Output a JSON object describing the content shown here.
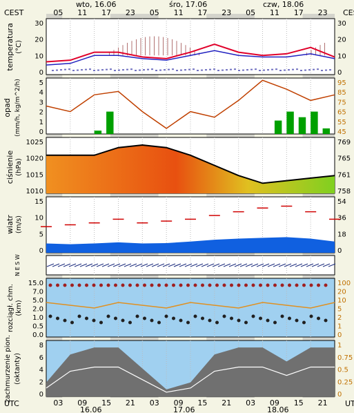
{
  "timezone_labels": {
    "top_left": "CEST",
    "top_right": "CEST",
    "bottom_left": "UTC",
    "bottom_right": "UTC"
  },
  "day_headers": [
    "wto, 16.06",
    "śro, 17.06",
    "czw, 18.06"
  ],
  "hours_top": [
    "05",
    "11",
    "17",
    "23",
    "05",
    "11",
    "17",
    "23",
    "05",
    "11",
    "17",
    "23"
  ],
  "hours_bottom": [
    "03",
    "09",
    "15",
    "21",
    "03",
    "09",
    "15",
    "21",
    "03",
    "09",
    "15",
    "21"
  ],
  "dates_bottom": [
    "16.06",
    "17.06",
    "18.06"
  ],
  "panels": {
    "temperature": {
      "ylabel_line1": "temperatura",
      "ylabel_line2": "(°C)",
      "left_ticks": [
        "0",
        "10",
        "20",
        "30"
      ],
      "right_ticks": [
        "0",
        "10",
        "20",
        "30"
      ]
    },
    "precipitation": {
      "ylabel_line1": "opad",
      "ylabel_line2": "(mm/h, kg/m^2/h)",
      "left_ticks": [
        "0",
        "1",
        "2",
        "3",
        "4",
        "5"
      ],
      "right_ticks": [
        "45",
        "55",
        "65",
        "75",
        "85",
        "95"
      ]
    },
    "pressure": {
      "ylabel_line1": "ciśnienie",
      "ylabel_line2": "(hPa)",
      "left_ticks": [
        "1010",
        "1015",
        "1020",
        "1025"
      ],
      "right_ticks": [
        "758",
        "761",
        "765",
        "769"
      ]
    },
    "wind": {
      "ylabel_line1": "wiatr",
      "ylabel_line2": "(m/s)",
      "left_ticks": [
        "0",
        "5",
        "10",
        "15"
      ],
      "right_ticks": [
        "0",
        "18",
        "36",
        "54"
      ]
    },
    "wind_dir": {
      "compass": "N E S W"
    },
    "cloud_base": {
      "ylabel_line1": "rozciągł. chm.",
      "ylabel_line2": "(km)",
      "left_ticks": [
        "0.0",
        "0.5",
        "1.0",
        "2.0",
        "5.0",
        "7.0",
        "15.0"
      ],
      "right_ticks": [
        "0",
        "1",
        "2",
        "5",
        "10",
        "20",
        "100"
      ]
    },
    "cloud_cover": {
      "ylabel_line1": "zachmurzenie pion.",
      "ylabel_line2": "(oktanty)",
      "left_ticks": [
        "0",
        "2",
        "4",
        "6",
        "8"
      ],
      "right_ticks": [
        "0",
        "0.25",
        "0.5",
        "0.75",
        "1"
      ]
    }
  },
  "colors": {
    "temperature": "#e0002a",
    "dewpoint": "#2020c0",
    "humidity_line": "#c04000",
    "rain": "#00a000",
    "wind_bar": "#1060e0",
    "gust": "#d00000",
    "cloud_bg": "#a0d0f0",
    "pressure_fill": "#f08020",
    "sea_level": "#6090ff"
  },
  "chart_data": [
    {
      "type": "line",
      "title": "temperatura",
      "ylim": [
        0,
        35
      ],
      "x_hours_from_start": [
        0,
        6,
        12,
        18,
        24,
        30,
        36,
        42,
        48,
        54,
        60,
        66,
        72
      ],
      "series": [
        {
          "name": "temperature",
          "values": [
            8,
            9,
            14,
            14,
            11,
            10,
            14,
            19,
            14,
            12,
            13,
            17,
            11
          ]
        },
        {
          "name": "dewpoint",
          "values": [
            6,
            7,
            12,
            12,
            10,
            9,
            12,
            15,
            12,
            11,
            11,
            13,
            10
          ]
        }
      ]
    },
    {
      "type": "bar",
      "title": "opad",
      "ylim": [
        0,
        5
      ],
      "series": [
        {
          "name": "precipitation",
          "values": [
            0,
            0,
            0,
            0,
            0.3,
            2,
            0,
            0,
            0,
            0,
            0,
            0,
            0,
            0,
            0,
            0,
            0,
            0,
            0,
            1.2,
            2,
            1.5,
            2,
            0.5
          ]
        },
        {
          "name": "humidity",
          "values": [
            70,
            65,
            80,
            83,
            65,
            50,
            65,
            60,
            75,
            93,
            85,
            75,
            80
          ]
        }
      ]
    },
    {
      "type": "area",
      "title": "ciśnienie",
      "ylim": [
        1005,
        1027
      ],
      "values": [
        1020,
        1020,
        1020,
        1023,
        1024,
        1023,
        1020,
        1016,
        1012,
        1009,
        1010,
        1011,
        1012
      ]
    },
    {
      "type": "bar",
      "title": "wiatr",
      "ylim": [
        0,
        15
      ],
      "values": [
        2.5,
        2.3,
        2.5,
        2.8,
        2.5,
        2.6,
        3.0,
        3.5,
        3.8,
        4.0,
        4.2,
        3.8,
        3.0
      ],
      "gusts": [
        7,
        7.5,
        8,
        9,
        8,
        8.5,
        9,
        10,
        11,
        12,
        12.5,
        11,
        9
      ]
    },
    {
      "type": "line",
      "title": "zachmurzenie pion.",
      "ylim": [
        0,
        8
      ],
      "values": [
        2,
        6,
        7,
        7,
        4,
        1,
        2,
        6,
        7,
        7,
        5,
        7,
        7
      ]
    }
  ]
}
